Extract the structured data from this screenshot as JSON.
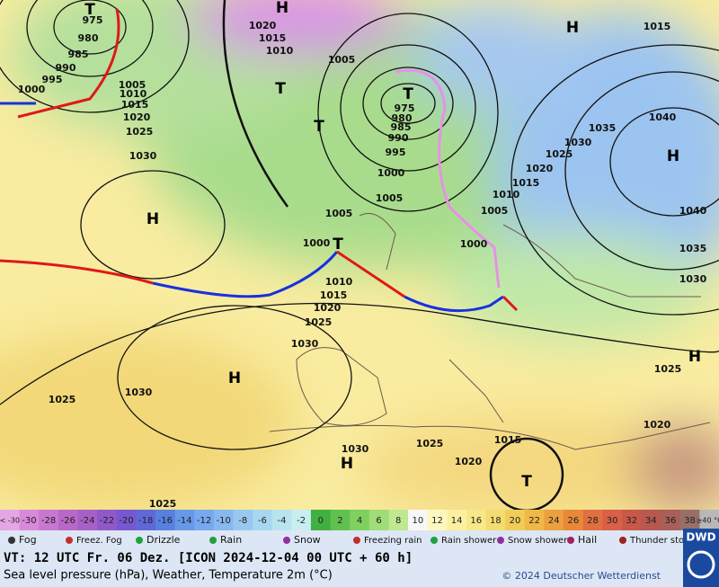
{
  "map": {
    "isobar_labels": [
      "1020",
      "1015",
      "1010",
      "1005",
      "975",
      "980",
      "985",
      "990",
      "995",
      "1000",
      "1005",
      "1010",
      "1015",
      "1020",
      "1025",
      "1030",
      "975",
      "980",
      "985",
      "990",
      "995",
      "1000",
      "1005",
      "1005",
      "1000",
      "1010",
      "1015",
      "1020",
      "1025",
      "1030",
      "1030",
      "1025",
      "1025",
      "1030",
      "1025",
      "1020",
      "1015",
      "1020",
      "1025",
      "1030",
      "1035",
      "1040",
      "1040",
      "1035",
      "1030",
      "1025",
      "1020",
      "1015",
      "1010",
      "1005",
      "1000",
      "1015"
    ],
    "pressure_centers": [
      "H",
      "H",
      "H",
      "H",
      "H",
      "H",
      "H",
      "T",
      "T",
      "T",
      "T",
      "T",
      "T"
    ]
  },
  "temperature_scale": {
    "labels": [
      "< -30",
      "-30",
      "-28",
      "-26",
      "-24",
      "-22",
      "-20",
      "-18",
      "-16",
      "-14",
      "-12",
      "-10",
      "-8",
      "-6",
      "-4",
      "-2",
      "0",
      "2",
      "4",
      "6",
      "8",
      "10",
      "12",
      "14",
      "16",
      "18",
      "20",
      "22",
      "24",
      "26",
      "28",
      "30",
      "32",
      "34",
      "36",
      "38",
      "≥40 °C"
    ],
    "colors": [
      "#e4a6e4",
      "#d88ad8",
      "#c878d0",
      "#b868c8",
      "#a860c8",
      "#9058c8",
      "#7858d0",
      "#6068d8",
      "#5880e0",
      "#6898e8",
      "#78a8f0",
      "#88b8f0",
      "#98c8f0",
      "#a8d8f0",
      "#b8e4f0",
      "#c8eef0",
      "#40b040",
      "#60c050",
      "#80d060",
      "#a0dc78",
      "#c0e890",
      "#f8f8f8",
      "#fdf8c0",
      "#fbf0a0",
      "#f8e888",
      "#f5dc70",
      "#f2cc58",
      "#f0b848",
      "#eca040",
      "#e88838",
      "#e07040",
      "#d86048",
      "#c85848",
      "#b85850",
      "#a86058",
      "#987068",
      "#b8b8b8"
    ]
  },
  "weather_legend": [
    "Fog",
    "Freez. Fog",
    "Drizzle",
    "Rain",
    "Snow",
    "Freezing rain",
    "Rain shower",
    "Snow shower",
    "Hail",
    "Thunder storm"
  ],
  "footer": {
    "valid_time": "VT: 12 UTC Fr.  06 Dez. [ICON 2024-12-04  00 UTC + 60 h]",
    "description": "Sea level pressure (hPa), Weather, Temperature 2m (°C)",
    "copyright": "© 2024 Deutscher Wetterdienst",
    "logo": "DWD"
  }
}
